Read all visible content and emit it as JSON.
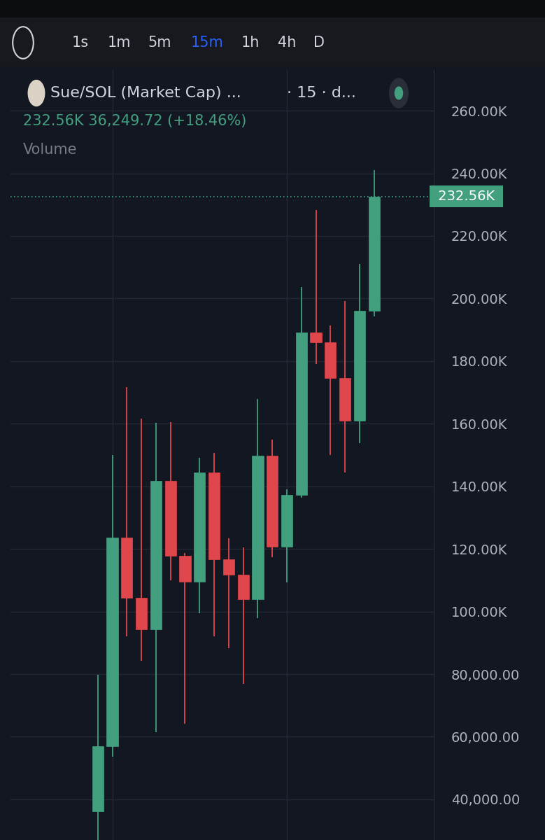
{
  "chart_data": {
    "type": "candlestick",
    "title": "Sue/SOL (Market Cap) ...",
    "subtitle": "232.56K 36,249.72 (+18.46%)",
    "annotations": [
      "· 15 · d...",
      "Volume"
    ],
    "toolbar": [
      "1s",
      "1m",
      "5m",
      "15m",
      "1h",
      "4h",
      "D"
    ],
    "categories": [
      null,
      null,
      null,
      null,
      null,
      null,
      null,
      null,
      null,
      null,
      null,
      null,
      null,
      null,
      null,
      null,
      null,
      null,
      null,
      null
    ],
    "open": [
      36200,
      57000,
      123700,
      104300,
      94300,
      141800,
      117700,
      109600,
      144300,
      116600,
      111700,
      103900,
      149700,
      120600,
      137200,
      189200,
      186100,
      174700,
      161000,
      196100
    ],
    "high": [
      79700,
      150000,
      171800,
      161700,
      160200,
      160600,
      118800,
      149000,
      150600,
      123300,
      120400,
      168000,
      155000,
      139000,
      203700,
      228300,
      191400,
      199200,
      211100,
      241000
    ],
    "low": [
      25000,
      53600,
      92000,
      84200,
      61400,
      110000,
      64100,
      99400,
      92000,
      88200,
      76800,
      97800,
      117300,
      109200,
      136300,
      179100,
      150100,
      144500,
      153900,
      194300
    ],
    "close": [
      57000,
      123700,
      104300,
      94300,
      141800,
      117700,
      109600,
      144300,
      116600,
      111700,
      103900,
      149700,
      120600,
      137200,
      189200,
      186100,
      174700,
      161000,
      196100,
      232560
    ],
    "colors": [
      "#42a07f",
      "#42a07f",
      "#e0474c",
      "#e0474c",
      "#42a07f",
      "#e0474c",
      "#e0474c",
      "#42a07f",
      "#e0474c",
      "#e0474c",
      "#e0474c",
      "#42a07f",
      "#e0474c",
      "#42a07f",
      "#42a07f",
      "#e0474c",
      "#e0474c",
      "#e0474c",
      "#42a07f",
      "#42a07f"
    ],
    "last_value": {
      "value": 232560,
      "label": "232.56K"
    },
    "ylim": [
      27000,
      273000
    ],
    "yticks": [
      {
        "value": 40000,
        "label": "40,000.00"
      },
      {
        "value": 60000,
        "label": "60,000.00"
      },
      {
        "value": 80000,
        "label": "80,000.00"
      },
      {
        "value": 100000,
        "label": "100.00K"
      },
      {
        "value": 120000,
        "label": "120.00K"
      },
      {
        "value": 140000,
        "label": "140.00K"
      },
      {
        "value": 160000,
        "label": "160.00K"
      },
      {
        "value": 180000,
        "label": "180.00K"
      },
      {
        "value": 200000,
        "label": "200.00K"
      },
      {
        "value": 220000,
        "label": "220.00K"
      },
      {
        "value": 240000,
        "label": "240.00K"
      },
      {
        "value": 260000,
        "label": "260.00K"
      }
    ],
    "grid": true,
    "tick_labels": "y"
  }
}
